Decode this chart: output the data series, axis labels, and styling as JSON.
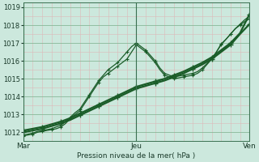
{
  "title": "Pression niveau de la mer( hPa )",
  "bg_color": "#cce8dd",
  "plot_bg": "#cce8dd",
  "major_grid_color": "#88b898",
  "minor_grid_color": "#ddb8b8",
  "line_color": "#1a5c28",
  "xlim": [
    0,
    24
  ],
  "ylim": [
    1011.5,
    1019.25
  ],
  "yticks": [
    1012,
    1013,
    1014,
    1015,
    1016,
    1017,
    1018,
    1019
  ],
  "xtick_positions": [
    0,
    12,
    24
  ],
  "x_labels": [
    "Mar",
    "Jeu",
    "Ven"
  ],
  "ylabel_text": "Pression niveau de la mer( hPa )",
  "line1_x": [
    0.0,
    0.5,
    1.0,
    1.5,
    2.0,
    2.5,
    3.0,
    3.5,
    4.0,
    4.5,
    5.0,
    5.5,
    6.0,
    6.5,
    7.0,
    7.5,
    8.0,
    8.5,
    9.0,
    9.5,
    10.0,
    10.5,
    11.0,
    11.5,
    12.0,
    12.5,
    13.0,
    13.5,
    14.0,
    14.5,
    15.0,
    15.5,
    16.0,
    16.5,
    17.0,
    17.5,
    18.0,
    18.5,
    19.0,
    19.5,
    20.0,
    20.5,
    21.0,
    21.5,
    22.0,
    22.5,
    23.0,
    23.5,
    24.0
  ],
  "line1_y": [
    1011.8,
    1011.85,
    1011.9,
    1012.0,
    1012.05,
    1012.1,
    1012.15,
    1012.2,
    1012.3,
    1012.5,
    1012.8,
    1013.0,
    1013.2,
    1013.6,
    1014.0,
    1014.4,
    1014.8,
    1015.1,
    1015.3,
    1015.5,
    1015.7,
    1015.9,
    1016.1,
    1016.5,
    1016.9,
    1016.7,
    1016.5,
    1016.2,
    1015.9,
    1015.5,
    1015.2,
    1015.1,
    1015.0,
    1015.05,
    1015.1,
    1015.15,
    1015.2,
    1015.3,
    1015.5,
    1015.8,
    1016.1,
    1016.5,
    1016.9,
    1017.2,
    1017.5,
    1017.8,
    1018.0,
    1018.2,
    1018.35
  ],
  "line2_x": [
    0.0,
    0.5,
    1.0,
    1.5,
    2.0,
    2.5,
    3.0,
    3.5,
    4.0,
    4.5,
    5.0,
    5.5,
    6.0,
    6.5,
    7.0,
    7.5,
    8.0,
    8.5,
    9.0,
    9.5,
    10.0,
    10.5,
    11.0,
    11.5,
    12.0,
    12.5,
    13.0,
    13.5,
    14.0,
    14.5,
    15.0,
    15.5,
    16.0,
    16.5,
    17.0,
    17.5,
    18.0,
    18.5,
    19.0,
    19.5,
    20.0,
    20.5,
    21.0,
    21.5,
    22.0,
    22.5,
    23.0,
    23.5,
    24.0
  ],
  "line2_y": [
    1011.85,
    1011.9,
    1011.95,
    1012.05,
    1012.1,
    1012.15,
    1012.2,
    1012.3,
    1012.4,
    1012.6,
    1012.85,
    1013.1,
    1013.3,
    1013.7,
    1014.1,
    1014.5,
    1014.9,
    1015.2,
    1015.5,
    1015.7,
    1015.9,
    1016.2,
    1016.5,
    1016.8,
    1017.0,
    1016.8,
    1016.6,
    1016.3,
    1016.0,
    1015.6,
    1015.3,
    1015.2,
    1015.1,
    1015.15,
    1015.2,
    1015.25,
    1015.3,
    1015.4,
    1015.6,
    1015.85,
    1016.1,
    1016.5,
    1016.95,
    1017.2,
    1017.5,
    1017.8,
    1018.05,
    1018.3,
    1018.5
  ],
  "line3_x": [
    0.0,
    1.0,
    2.0,
    3.0,
    4.0,
    5.0,
    6.0,
    7.0,
    8.0,
    9.0,
    10.0,
    11.0,
    12.0,
    13.0,
    14.0,
    15.0,
    16.0,
    17.0,
    18.0,
    19.0,
    20.0,
    21.0,
    22.0,
    23.0,
    24.0
  ],
  "line3_y": [
    1012.0,
    1012.1,
    1012.2,
    1012.35,
    1012.5,
    1012.7,
    1012.95,
    1013.2,
    1013.45,
    1013.7,
    1013.95,
    1014.2,
    1014.45,
    1014.6,
    1014.75,
    1014.9,
    1015.1,
    1015.3,
    1015.55,
    1015.8,
    1016.1,
    1016.5,
    1016.9,
    1017.5,
    1018.05
  ],
  "line4_x": [
    0.0,
    1.0,
    2.0,
    3.0,
    4.0,
    5.0,
    6.0,
    7.0,
    8.0,
    9.0,
    10.0,
    11.0,
    12.0,
    13.0,
    14.0,
    15.0,
    16.0,
    17.0,
    18.0,
    19.0,
    20.0,
    21.0,
    22.0,
    23.0,
    24.0
  ],
  "line4_y": [
    1012.1,
    1012.2,
    1012.3,
    1012.45,
    1012.6,
    1012.8,
    1013.05,
    1013.3,
    1013.55,
    1013.8,
    1014.05,
    1014.3,
    1014.55,
    1014.7,
    1014.85,
    1015.0,
    1015.2,
    1015.4,
    1015.65,
    1015.9,
    1016.2,
    1016.6,
    1017.0,
    1017.55,
    1018.6
  ]
}
